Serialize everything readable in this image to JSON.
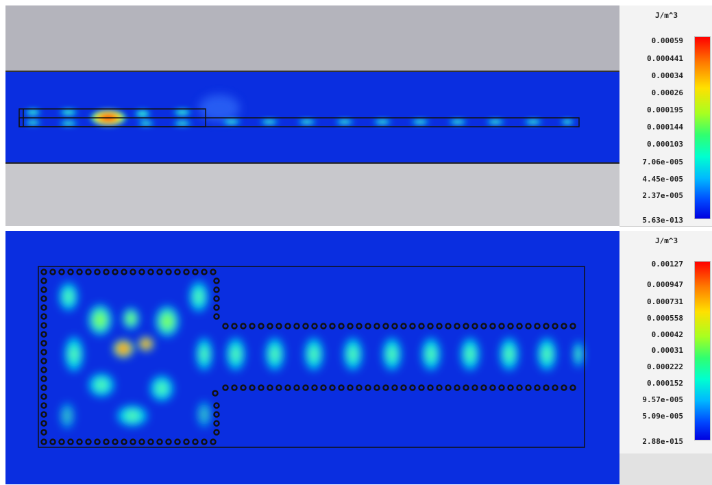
{
  "top_legend": {
    "unit": "J/m^3",
    "ticks": [
      "0.00059",
      "0.000441",
      "0.00034",
      "0.00026",
      "0.000195",
      "0.000144",
      "0.000103",
      "7.06e-005",
      "4.45e-005",
      "2.37e-005",
      "5.63e-013"
    ]
  },
  "bottom_legend": {
    "unit": "J/m^3",
    "ticks": [
      "0.00127",
      "0.000947",
      "0.000731",
      "0.000558",
      "0.00042",
      "0.00031",
      "0.000222",
      "0.000152",
      "9.57e-005",
      "5.09e-005",
      "2.88e-015"
    ]
  },
  "colors": {
    "background_blue": "#0a2ee0",
    "grey_band": "#c8c8cc",
    "upper_grey": "#b4b4bc",
    "hot": "#ff2000",
    "warm": "#ffe000",
    "mid": "#30ff90",
    "cool": "#00d8ff"
  }
}
